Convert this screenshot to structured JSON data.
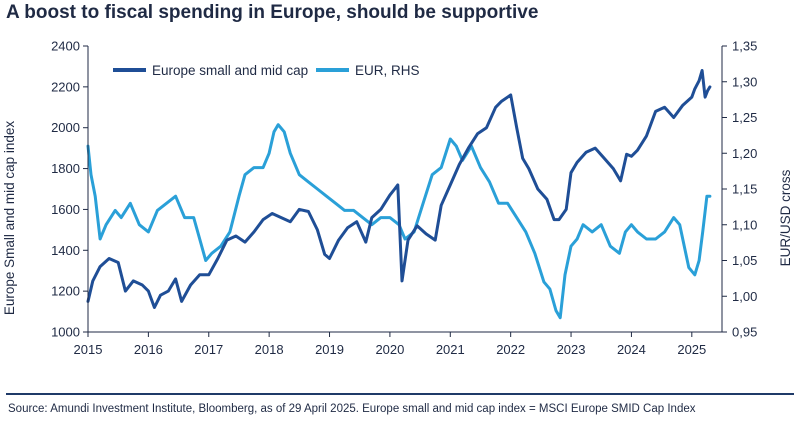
{
  "title": "A boost to fiscal spending in Europe, should be supportive",
  "source": "Source: Amundi Investment Institute, Bloomberg, as of 29 April 2025. Europe small and mid cap index = MSCI Europe SMID Cap Index",
  "colors": {
    "smid": "#1f4e96",
    "eur": "#2aa0d8",
    "text": "#1f2a44"
  },
  "chart_data": {
    "type": "line",
    "title": "A boost to fiscal spending in Europe, should be supportive",
    "xlabel": "",
    "ylabel": "Europe Small and mid cap index",
    "y2label": "EUR/USD cross",
    "xlim": [
      2015.0,
      2025.5
    ],
    "ylim": [
      1000,
      2400
    ],
    "y2lim": [
      0.95,
      1.35
    ],
    "x_ticks": [
      "2015",
      "2016",
      "2017",
      "2018",
      "2019",
      "2020",
      "2021",
      "2022",
      "2023",
      "2024",
      "2025"
    ],
    "y_ticks": [
      "1000",
      "1200",
      "1400",
      "1600",
      "1800",
      "2000",
      "2200",
      "2400"
    ],
    "y2_ticks": [
      "0,95",
      "1,00",
      "1,05",
      "1,10",
      "1,15",
      "1,20",
      "1,25",
      "1,30",
      "1,35"
    ],
    "legend_position": "top-left",
    "series": [
      {
        "name": "Europe small and mid cap",
        "axis": "left",
        "x": [
          2015.0,
          2015.08,
          2015.2,
          2015.35,
          2015.5,
          2015.62,
          2015.75,
          2015.9,
          2016.0,
          2016.1,
          2016.2,
          2016.33,
          2016.45,
          2016.55,
          2016.7,
          2016.85,
          2017.0,
          2017.15,
          2017.3,
          2017.45,
          2017.6,
          2017.75,
          2017.9,
          2018.05,
          2018.2,
          2018.35,
          2018.5,
          2018.65,
          2018.8,
          2018.92,
          2019.0,
          2019.15,
          2019.3,
          2019.45,
          2019.6,
          2019.7,
          2019.85,
          2020.0,
          2020.08,
          2020.13,
          2020.2,
          2020.3,
          2020.45,
          2020.6,
          2020.75,
          2020.85,
          2021.0,
          2021.15,
          2021.3,
          2021.45,
          2021.6,
          2021.75,
          2021.85,
          2022.0,
          2022.1,
          2022.2,
          2022.3,
          2022.45,
          2022.6,
          2022.72,
          2022.8,
          2022.92,
          2023.0,
          2023.1,
          2023.25,
          2023.4,
          2023.55,
          2023.7,
          2023.82,
          2023.92,
          2024.0,
          2024.1,
          2024.25,
          2024.4,
          2024.55,
          2024.7,
          2024.85,
          2025.0,
          2025.05,
          2025.12,
          2025.17,
          2025.22,
          2025.26,
          2025.3
        ],
        "values": [
          1150,
          1250,
          1320,
          1360,
          1340,
          1200,
          1250,
          1230,
          1200,
          1120,
          1180,
          1200,
          1260,
          1150,
          1230,
          1280,
          1280,
          1360,
          1450,
          1470,
          1440,
          1490,
          1550,
          1580,
          1560,
          1540,
          1600,
          1590,
          1500,
          1380,
          1360,
          1450,
          1510,
          1540,
          1440,
          1560,
          1600,
          1670,
          1700,
          1720,
          1250,
          1450,
          1520,
          1480,
          1450,
          1620,
          1720,
          1820,
          1900,
          1970,
          2000,
          2100,
          2130,
          2160,
          2000,
          1850,
          1800,
          1700,
          1650,
          1550,
          1550,
          1600,
          1780,
          1830,
          1880,
          1900,
          1850,
          1800,
          1740,
          1870,
          1860,
          1890,
          1960,
          2080,
          2100,
          2050,
          2110,
          2150,
          2190,
          2230,
          2280,
          2150,
          2180,
          2200
        ]
      },
      {
        "name": "EUR, RHS",
        "axis": "right",
        "x": [
          2015.0,
          2015.05,
          2015.12,
          2015.2,
          2015.3,
          2015.45,
          2015.55,
          2015.7,
          2015.85,
          2016.0,
          2016.15,
          2016.3,
          2016.45,
          2016.6,
          2016.75,
          2016.85,
          2016.95,
          2017.05,
          2017.2,
          2017.35,
          2017.5,
          2017.6,
          2017.75,
          2017.9,
          2018.0,
          2018.08,
          2018.15,
          2018.25,
          2018.35,
          2018.5,
          2018.65,
          2018.8,
          2018.95,
          2019.1,
          2019.25,
          2019.4,
          2019.55,
          2019.7,
          2019.85,
          2020.0,
          2020.15,
          2020.25,
          2020.4,
          2020.55,
          2020.7,
          2020.85,
          2021.0,
          2021.1,
          2021.2,
          2021.35,
          2021.5,
          2021.65,
          2021.8,
          2021.95,
          2022.1,
          2022.25,
          2022.4,
          2022.55,
          2022.65,
          2022.75,
          2022.82,
          2022.9,
          2023.0,
          2023.1,
          2023.2,
          2023.35,
          2023.5,
          2023.65,
          2023.8,
          2023.9,
          2024.0,
          2024.1,
          2024.25,
          2024.4,
          2024.55,
          2024.7,
          2024.8,
          2024.95,
          2025.05,
          2025.12,
          2025.18,
          2025.25,
          2025.3
        ],
        "values": [
          1.21,
          1.17,
          1.14,
          1.08,
          1.1,
          1.12,
          1.11,
          1.13,
          1.1,
          1.09,
          1.12,
          1.13,
          1.14,
          1.11,
          1.11,
          1.08,
          1.05,
          1.06,
          1.07,
          1.09,
          1.14,
          1.17,
          1.18,
          1.18,
          1.2,
          1.23,
          1.24,
          1.23,
          1.2,
          1.17,
          1.16,
          1.15,
          1.14,
          1.13,
          1.12,
          1.12,
          1.11,
          1.1,
          1.11,
          1.11,
          1.1,
          1.08,
          1.09,
          1.13,
          1.17,
          1.18,
          1.22,
          1.21,
          1.19,
          1.21,
          1.18,
          1.16,
          1.13,
          1.13,
          1.11,
          1.09,
          1.06,
          1.02,
          1.01,
          0.98,
          0.97,
          1.03,
          1.07,
          1.08,
          1.1,
          1.09,
          1.1,
          1.07,
          1.06,
          1.09,
          1.1,
          1.09,
          1.08,
          1.08,
          1.09,
          1.11,
          1.1,
          1.04,
          1.03,
          1.05,
          1.09,
          1.14,
          1.14
        ]
      }
    ]
  }
}
